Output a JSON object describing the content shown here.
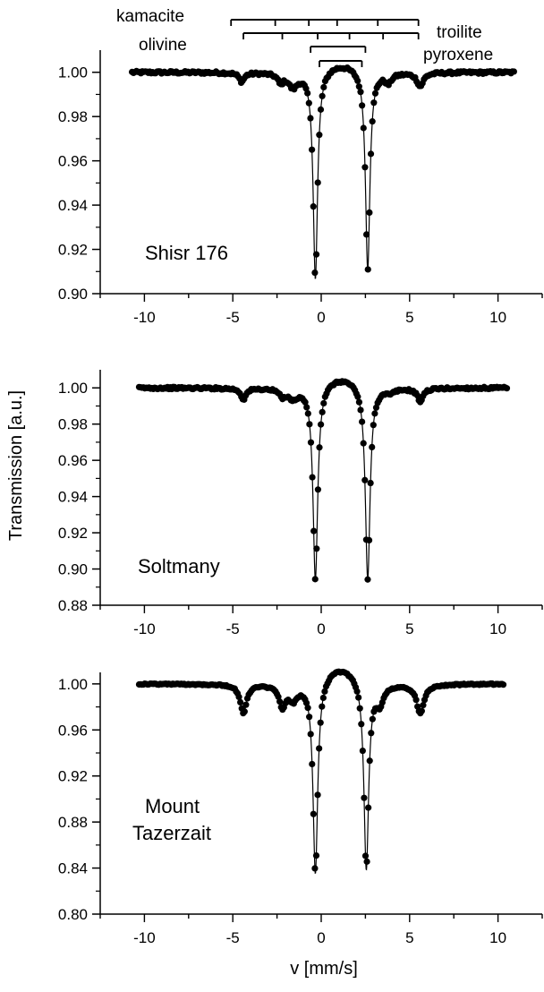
{
  "figure": {
    "xlabel": "v [mm/s]",
    "ylabel": "Transmission [a.u.]",
    "header_labels": {
      "kamacite": "kamacite",
      "olivine": "olivine",
      "troilite": "troilite",
      "pyroxene": "pyroxene"
    },
    "colors": {
      "data": "#000000",
      "axes": "#000000",
      "background": "#ffffff"
    }
  },
  "stick_diagrams": [
    {
      "name": "troilite",
      "positions": [
        -5.1,
        -2.6,
        -0.7,
        0.9,
        3.2,
        5.5
      ]
    },
    {
      "name": "kamacite",
      "positions": [
        -4.4,
        -2.2,
        -0.2,
        1.6,
        3.5,
        5.5
      ]
    },
    {
      "name": "olivine",
      "positions": [
        -0.6,
        2.5
      ]
    },
    {
      "name": "pyroxene",
      "positions": [
        -0.1,
        2.3
      ]
    }
  ],
  "chart_data": [
    {
      "type": "scatter",
      "label": "Shisr 176",
      "label_lines": [
        "Shisr 176"
      ],
      "xlim": [
        -12.5,
        12.5
      ],
      "ylim": [
        0.9,
        1.01
      ],
      "xticks": [
        -10,
        -5,
        0,
        5,
        10
      ],
      "yticks": [
        0.9,
        0.92,
        0.94,
        0.96,
        0.98,
        1.0
      ],
      "ytick_labels": [
        "0.90",
        "0.92",
        "0.94",
        "0.96",
        "0.98",
        "1.00"
      ],
      "xrange": [
        -10.7,
        10.9
      ],
      "dips": [
        {
          "center": -0.33,
          "depth": 0.094,
          "width": 0.15
        },
        {
          "center": 2.63,
          "depth": 0.09,
          "width": 0.15
        },
        {
          "center": -4.5,
          "depth": 0.004,
          "width": 0.18
        },
        {
          "center": -2.3,
          "depth": 0.004,
          "width": 0.18
        },
        {
          "center": -1.6,
          "depth": 0.006,
          "width": 0.3
        },
        {
          "center": 3.8,
          "depth": 0.004,
          "width": 0.2
        },
        {
          "center": 5.6,
          "depth": 0.006,
          "width": 0.22
        }
      ],
      "broad": {
        "center": 1.15,
        "depth": 0.004,
        "width": 2.2
      }
    },
    {
      "type": "scatter",
      "label": "Soltmany",
      "label_lines": [
        "Soltmany"
      ],
      "xlim": [
        -12.5,
        12.5
      ],
      "ylim": [
        0.88,
        1.01
      ],
      "xticks": [
        -10,
        -5,
        0,
        5,
        10
      ],
      "yticks": [
        0.88,
        0.9,
        0.92,
        0.94,
        0.96,
        0.98,
        1.0
      ],
      "ytick_labels": [
        "0.88",
        "0.90",
        "0.92",
        "0.94",
        "0.96",
        "0.98",
        "1.00"
      ],
      "xrange": [
        -10.3,
        10.5
      ],
      "dips": [
        {
          "center": -0.33,
          "depth": 0.107,
          "width": 0.16
        },
        {
          "center": 2.63,
          "depth": 0.107,
          "width": 0.16
        },
        {
          "center": -4.4,
          "depth": 0.006,
          "width": 0.18
        },
        {
          "center": -2.2,
          "depth": 0.004,
          "width": 0.18
        },
        {
          "center": -1.6,
          "depth": 0.005,
          "width": 0.3
        },
        {
          "center": 3.9,
          "depth": 0.002,
          "width": 0.2
        },
        {
          "center": 5.6,
          "depth": 0.007,
          "width": 0.2
        }
      ],
      "broad": {
        "center": 1.15,
        "depth": 0.006,
        "width": 2.2
      }
    },
    {
      "type": "scatter",
      "label": "Mount Tazerzait",
      "label_lines": [
        "Mount",
        "Tazerzait"
      ],
      "xlim": [
        -12.5,
        12.5
      ],
      "ylim": [
        0.8,
        1.01
      ],
      "xticks": [
        -10,
        -5,
        0,
        5,
        10
      ],
      "yticks": [
        0.8,
        0.84,
        0.88,
        0.92,
        0.96,
        1.0
      ],
      "ytick_labels": [
        "0.80",
        "0.84",
        "0.88",
        "0.92",
        "0.96",
        "1.00"
      ],
      "xrange": [
        -10.3,
        10.3
      ],
      "dips": [
        {
          "center": -0.33,
          "depth": 0.168,
          "width": 0.16
        },
        {
          "center": 2.55,
          "depth": 0.164,
          "width": 0.16
        },
        {
          "center": -4.4,
          "depth": 0.025,
          "width": 0.22
        },
        {
          "center": -2.2,
          "depth": 0.018,
          "width": 0.22
        },
        {
          "center": -1.6,
          "depth": 0.012,
          "width": 0.3
        },
        {
          "center": 3.3,
          "depth": 0.015,
          "width": 0.25
        },
        {
          "center": 5.6,
          "depth": 0.025,
          "width": 0.25
        }
      ],
      "broad": {
        "center": 1.1,
        "depth": 0.015,
        "width": 2.2
      }
    }
  ]
}
